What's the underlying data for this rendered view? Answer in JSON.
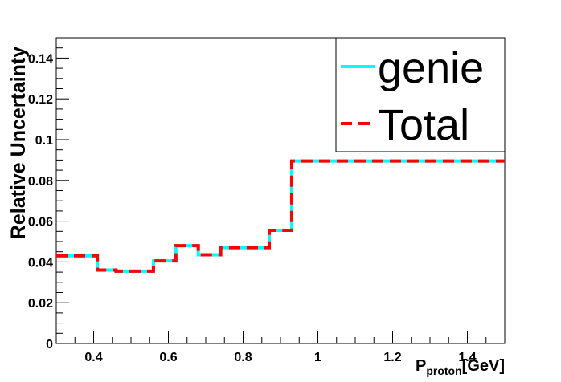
{
  "chart_data": {
    "type": "line",
    "step": true,
    "xlabel_main": "P",
    "xlabel_sub": "proton",
    "xlabel_unit": "[GeV]",
    "ylabel": "Relative Uncertainty",
    "xlim": [
      0.3,
      1.5
    ],
    "ylim": [
      0,
      0.15
    ],
    "x_ticks": [
      0.4,
      0.6,
      0.8,
      1,
      1.2,
      1.4
    ],
    "x_tick_labels": [
      "0.4",
      "0.6",
      "0.8",
      "1",
      "1.2",
      "1.4"
    ],
    "y_ticks": [
      0,
      0.02,
      0.04,
      0.06,
      0.08,
      0.1,
      0.12,
      0.14
    ],
    "y_tick_labels": [
      "0",
      "0.02",
      "0.04",
      "0.06",
      "0.08",
      "0.1",
      "0.12",
      "0.14"
    ],
    "grid": false,
    "legend_position": "top-right",
    "bin_edges": [
      0.3,
      0.41,
      0.46,
      0.56,
      0.62,
      0.68,
      0.74,
      0.87,
      0.93,
      1.5
    ],
    "series": [
      {
        "name": "genie",
        "color": "#00ffff",
        "values": [
          0.043,
          0.036,
          0.0355,
          0.0405,
          0.048,
          0.0435,
          0.047,
          0.0555,
          0.0895
        ]
      },
      {
        "name": "Total",
        "color": "#ff0000",
        "values": [
          0.043,
          0.036,
          0.0355,
          0.0405,
          0.048,
          0.0435,
          0.047,
          0.0555,
          0.0895
        ]
      }
    ]
  }
}
